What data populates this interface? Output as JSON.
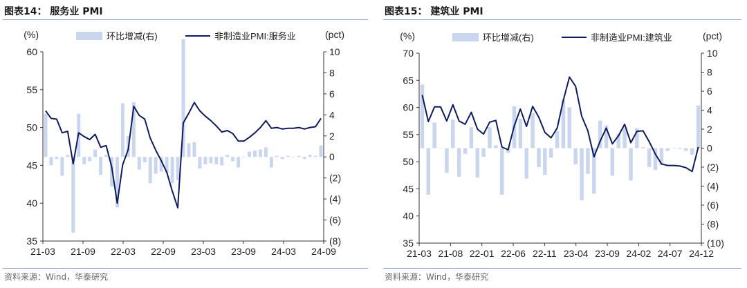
{
  "left": {
    "title": "图表14： 服务业 PMI",
    "source": "资料来源：Wind，华泰研究",
    "chart_data": {
      "type": "bar+line",
      "left_unit": "(%)",
      "right_unit": "(pct)",
      "legend": [
        "环比增减(右)",
        "非制造业PMI:服务业"
      ],
      "ylim_left": [
        35,
        60
      ],
      "yticks_left": [
        "35",
        "40",
        "45",
        "50",
        "55",
        "60"
      ],
      "ylim_right": [
        -8,
        10
      ],
      "yticks_right": [
        "(8)",
        "(6)",
        "(4)",
        "(2)",
        "0",
        "2",
        "4",
        "6",
        "8",
        "10"
      ],
      "xtick_labels": [
        "21-03",
        "21-09",
        "22-03",
        "22-09",
        "23-03",
        "23-09",
        "24-03",
        "24-09"
      ],
      "series": [
        {
          "name": "非制造业PMI:服务业",
          "type": "line",
          "color": "#0d1b5e",
          "values": [
            52.2,
            51.2,
            51.1,
            49.3,
            49.5,
            45.2,
            49.3,
            48.8,
            48.4,
            49.1,
            47.4,
            47.6,
            44.8,
            40.0,
            45.1,
            47.1,
            52.8,
            51.6,
            51.1,
            48.6,
            47.0,
            45.6,
            44.1,
            41.6,
            39.4,
            50.6,
            51.9,
            53.3,
            52.2,
            51.5,
            50.9,
            50.2,
            49.4,
            49.6,
            49.2,
            48.2,
            48.2,
            48.7,
            49.3,
            50.0,
            50.9,
            49.9,
            50.0,
            49.8,
            49.9,
            49.9,
            50.0,
            49.8,
            50.0,
            50.1,
            51.2
          ]
        },
        {
          "name": "环比增减(右)",
          "type": "bar",
          "color": "#c9d6ee",
          "values": [
            4.1,
            -0.8,
            -0.2,
            -1.8,
            0.2,
            -7.2,
            4.1,
            -0.7,
            -0.4,
            0.7,
            -1.7,
            0.2,
            -2.8,
            -4.8,
            5.1,
            2.0,
            5.2,
            -1.2,
            -0.5,
            -2.5,
            -1.6,
            -1.4,
            -1.5,
            -2.5,
            -2.2,
            11.2,
            1.3,
            1.4,
            -1.1,
            -0.7,
            -0.6,
            -0.7,
            -0.8,
            0.2,
            -0.4,
            -1.0,
            0.0,
            0.5,
            0.6,
            0.7,
            0.9,
            -1.0,
            0.1,
            -0.2,
            0.1,
            0.0,
            0.1,
            -0.2,
            0.2,
            0.1,
            1.1
          ]
        }
      ]
    }
  },
  "right": {
    "title": "图表15： 建筑业 PMI",
    "source": "资料来源：Wind，华泰研究",
    "chart_data": {
      "type": "bar+line",
      "left_unit": "(%)",
      "right_unit": "(pct)",
      "legend": [
        "环比增减(右)",
        "非制造业PMI:建筑业"
      ],
      "ylim_left": [
        35,
        70
      ],
      "yticks_left": [
        "35",
        "40",
        "45",
        "50",
        "55",
        "60",
        "65",
        "70"
      ],
      "ylim_right": [
        -10,
        10
      ],
      "yticks_right": [
        "(10)",
        "(8)",
        "(6)",
        "(4)",
        "(2)",
        "0",
        "2",
        "4",
        "6",
        "8",
        "10"
      ],
      "xtick_labels": [
        "21-03",
        "21-08",
        "22-01",
        "22-06",
        "22-11",
        "23-04",
        "23-09",
        "24-02",
        "24-07",
        "24-12"
      ],
      "series": [
        {
          "name": "非制造业PMI:建筑业",
          "type": "line",
          "color": "#0d1b5e",
          "values": [
            62.3,
            57.4,
            60.1,
            60.1,
            57.5,
            60.5,
            57.5,
            56.9,
            59.1,
            56.0,
            55.1,
            57.3,
            57.6,
            52.7,
            52.2,
            56.6,
            59.7,
            56.5,
            60.2,
            58.2,
            55.4,
            54.4,
            56.2,
            61.3,
            65.6,
            63.9,
            58.4,
            55.7,
            50.9,
            53.8,
            56.2,
            53.3,
            54.8,
            56.9,
            53.5,
            55.6,
            55.7,
            53.7,
            51.4,
            49.6,
            49.3,
            49.3,
            49.2,
            48.9,
            48.2,
            52.7
          ]
        },
        {
          "name": "环比增减(右)",
          "type": "bar",
          "color": "#c9d6ee",
          "values": [
            6.7,
            -4.9,
            2.7,
            0.0,
            -2.6,
            3.0,
            -3.0,
            -0.6,
            2.2,
            -3.1,
            -0.9,
            2.2,
            0.3,
            -4.9,
            -0.5,
            4.4,
            3.1,
            -3.2,
            3.7,
            -2.0,
            -2.8,
            -1.0,
            1.8,
            5.1,
            4.3,
            -1.7,
            -5.5,
            -2.7,
            -4.8,
            2.9,
            2.4,
            -2.9,
            1.5,
            2.1,
            -3.4,
            2.1,
            0.1,
            -2.0,
            -2.3,
            -1.8,
            -0.3,
            0.0,
            -0.1,
            -0.3,
            -0.7,
            4.5
          ]
        }
      ]
    }
  }
}
